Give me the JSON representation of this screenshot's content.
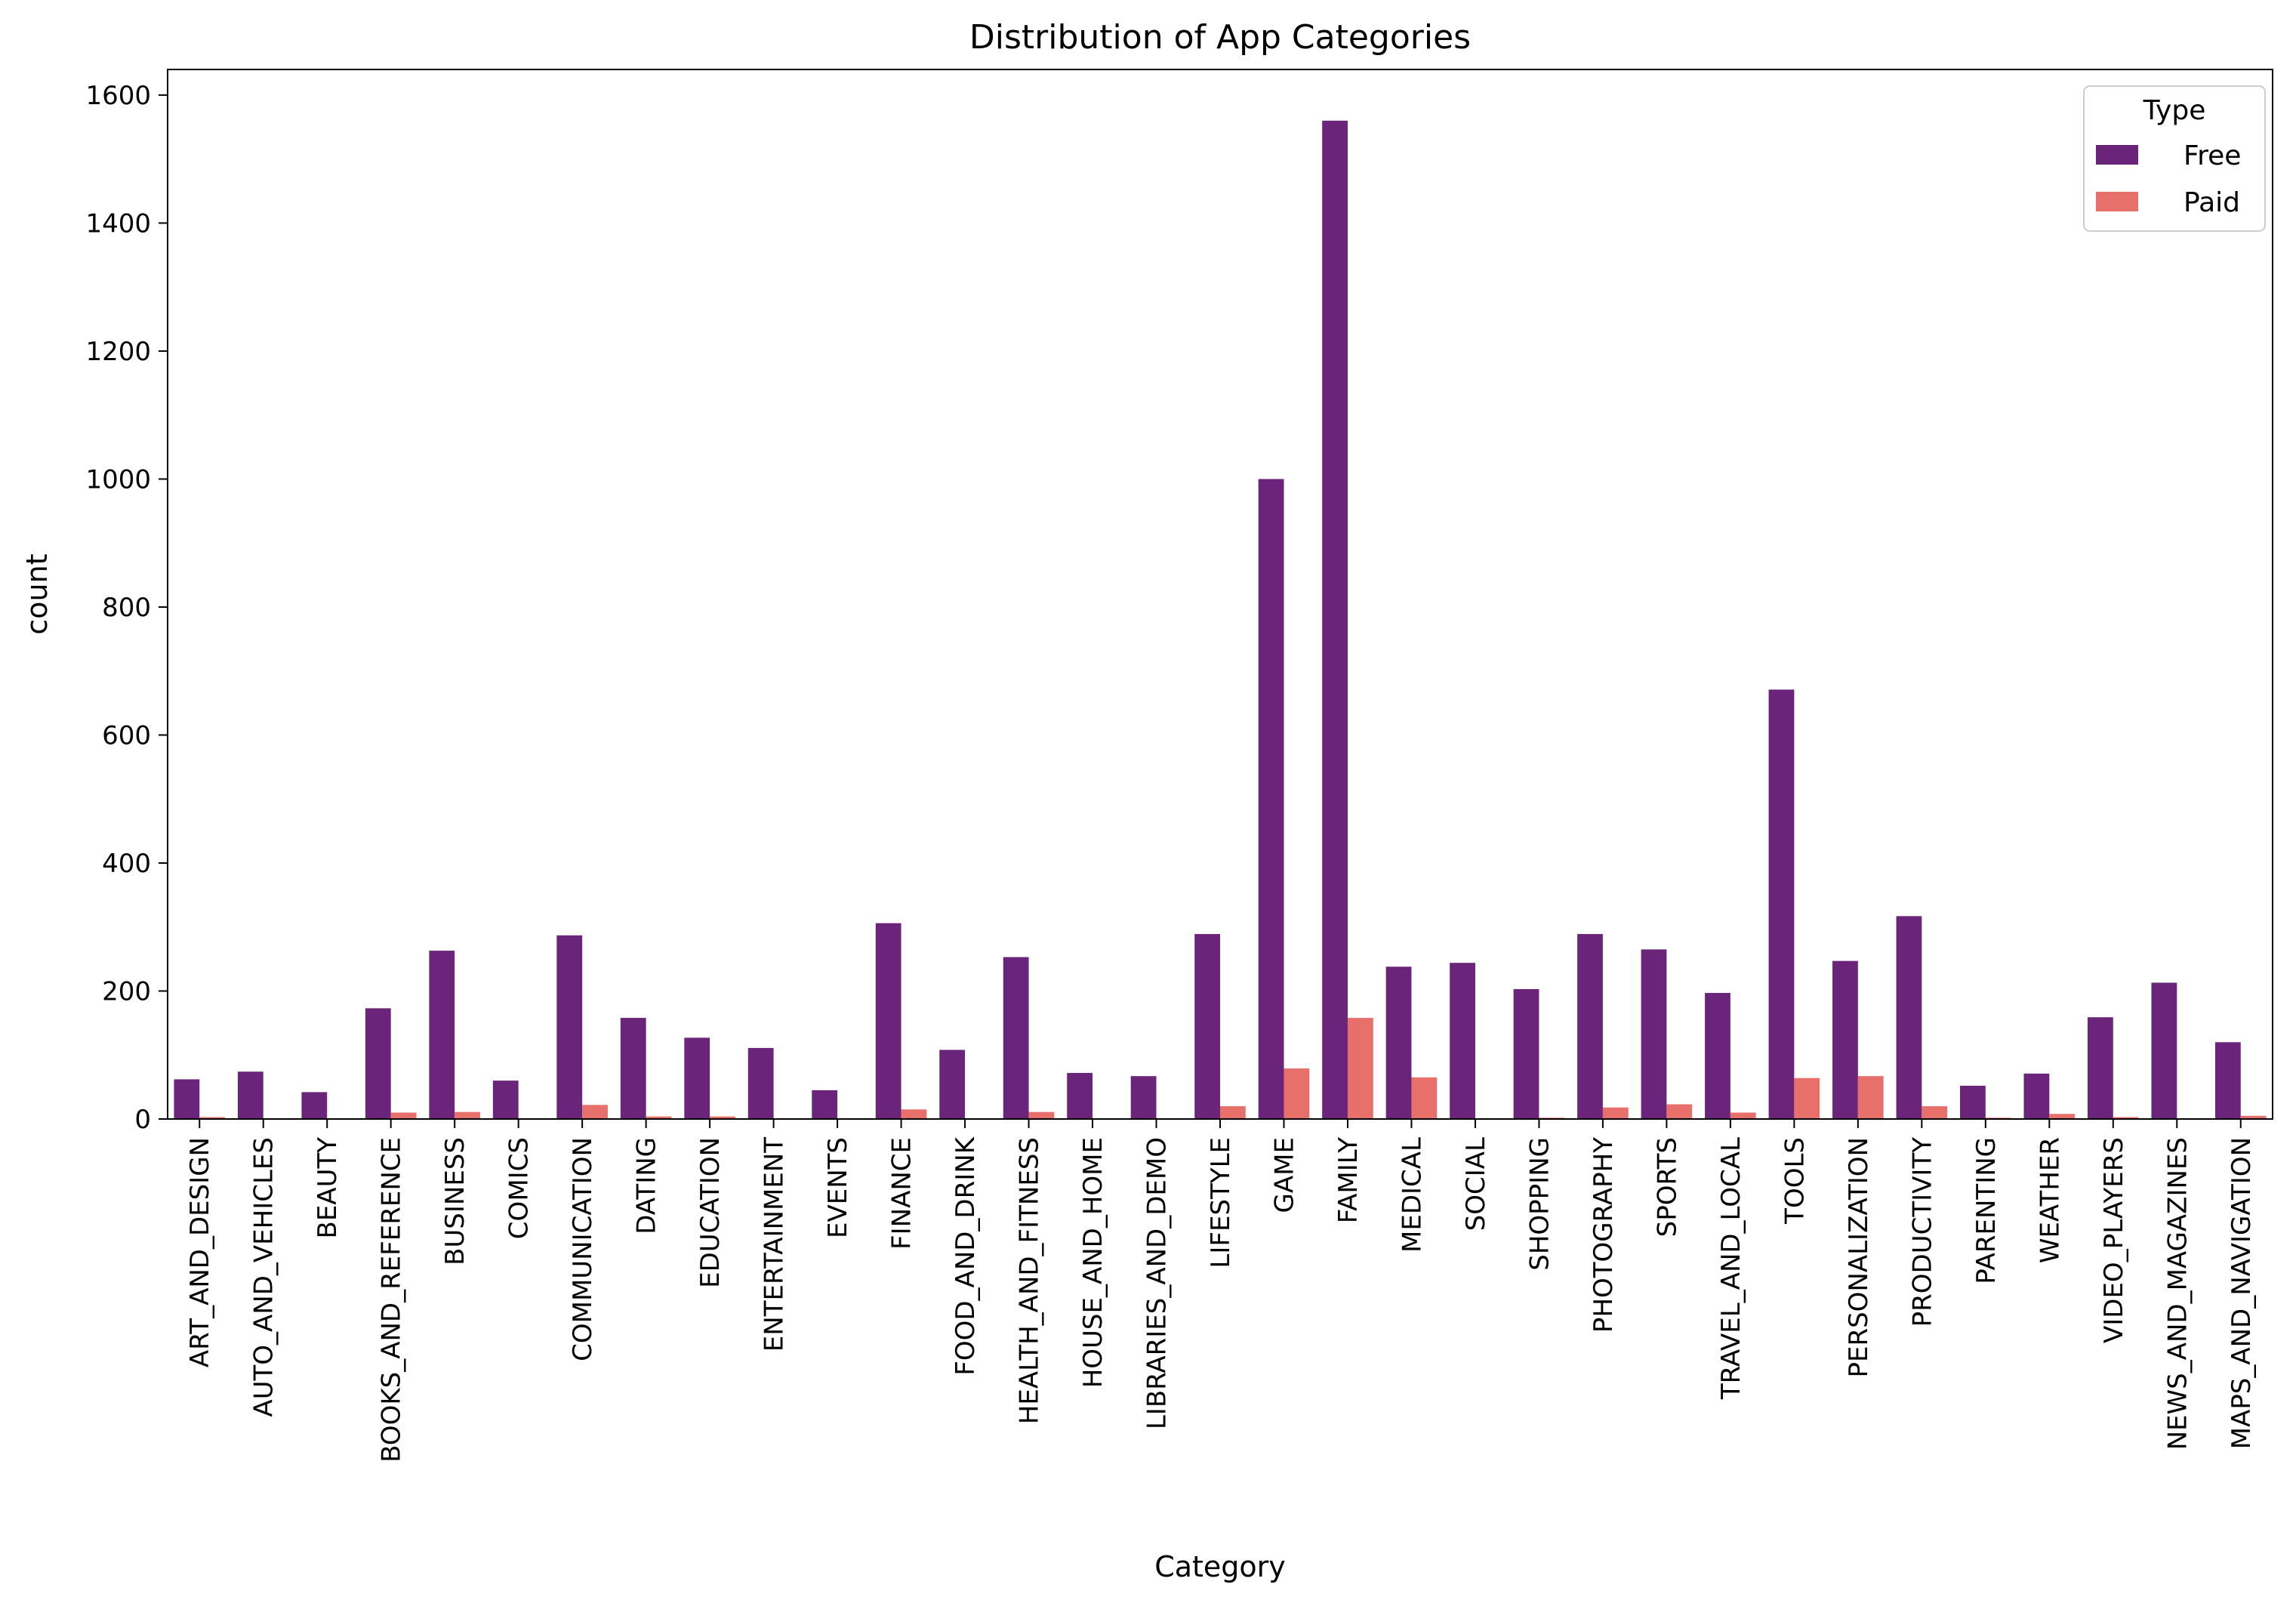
{
  "chart_data": {
    "type": "bar",
    "title": "Distribution of App Categories",
    "xlabel": "Category",
    "ylabel": "count",
    "ylim": [
      0,
      1640
    ],
    "yticks": [
      0,
      200,
      400,
      600,
      800,
      1000,
      1200,
      1400,
      1600
    ],
    "grid": false,
    "legend": {
      "title": "Type",
      "placement": "top-right"
    },
    "categories": [
      "ART_AND_DESIGN",
      "AUTO_AND_VEHICLES",
      "BEAUTY",
      "BOOKS_AND_REFERENCE",
      "BUSINESS",
      "COMICS",
      "COMMUNICATION",
      "DATING",
      "EDUCATION",
      "ENTERTAINMENT",
      "EVENTS",
      "FINANCE",
      "FOOD_AND_DRINK",
      "HEALTH_AND_FITNESS",
      "HOUSE_AND_HOME",
      "LIBRARIES_AND_DEMO",
      "LIFESTYLE",
      "GAME",
      "FAMILY",
      "MEDICAL",
      "SOCIAL",
      "SHOPPING",
      "PHOTOGRAPHY",
      "SPORTS",
      "TRAVEL_AND_LOCAL",
      "TOOLS",
      "PERSONALIZATION",
      "PRODUCTIVITY",
      "PARENTING",
      "WEATHER",
      "VIDEO_PLAYERS",
      "NEWS_AND_MAGAZINES",
      "MAPS_AND_NAVIGATION"
    ],
    "series": [
      {
        "name": "Free",
        "color": "#6a2479",
        "values": [
          62,
          74,
          42,
          173,
          263,
          60,
          287,
          158,
          127,
          111,
          45,
          306,
          108,
          253,
          72,
          67,
          289,
          1000,
          1560,
          238,
          244,
          203,
          289,
          265,
          197,
          671,
          247,
          317,
          52,
          71,
          159,
          213,
          120
        ]
      },
      {
        "name": "Paid",
        "color": "#e7706b",
        "values": [
          3,
          0,
          0,
          10,
          11,
          0,
          22,
          4,
          4,
          1,
          0,
          15,
          1,
          11,
          0,
          0,
          20,
          79,
          158,
          65,
          0,
          2,
          18,
          23,
          10,
          64,
          67,
          20,
          2,
          8,
          3,
          1,
          5
        ]
      }
    ]
  }
}
